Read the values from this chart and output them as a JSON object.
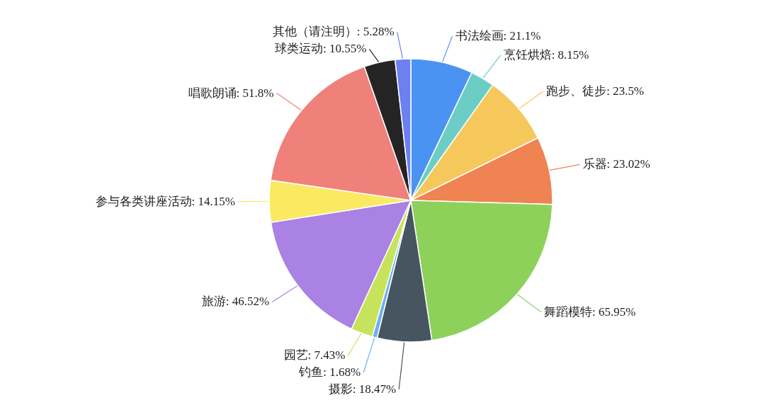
{
  "chart_data": {
    "type": "pie",
    "categories": [
      "书法绘画",
      "烹饪烘焙",
      "跑步、徒步",
      "乐器",
      "舞蹈模特",
      "摄影",
      "钓鱼",
      "园艺",
      "旅游",
      "参与各类讲座活动",
      "唱歌朗诵",
      "球类运动",
      "其他（请注明）"
    ],
    "values": [
      21.1,
      8.15,
      23.5,
      23.02,
      65.95,
      18.47,
      1.68,
      7.43,
      46.52,
      14.15,
      51.8,
      10.55,
      5.28
    ],
    "value_labels": [
      "21.1%",
      "8.15%",
      "23.5%",
      "23.02%",
      "65.95%",
      "18.47%",
      "1.68%",
      "7.43%",
      "46.52%",
      "14.15%",
      "51.8%",
      "10.55%",
      "5.28%"
    ],
    "colors": [
      "#4a93f2",
      "#6ccdc6",
      "#f6c85b",
      "#ef8352",
      "#8dd15b",
      "#46555f",
      "#6cb0f2",
      "#c7e35b",
      "#a982e3",
      "#fbe961",
      "#ef817a",
      "#242424",
      "#6c80f2"
    ]
  }
}
